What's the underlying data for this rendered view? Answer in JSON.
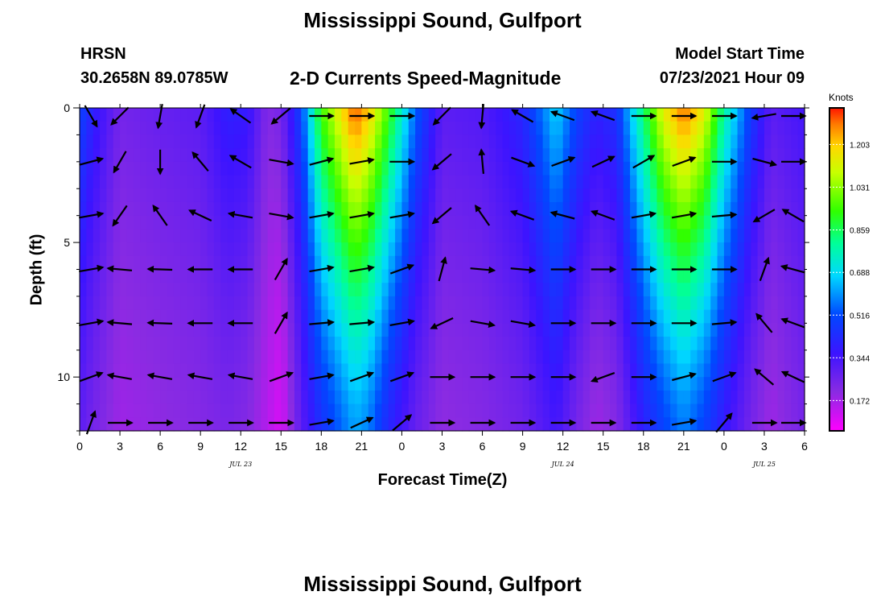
{
  "header": {
    "title": "Mississippi Sound, Gulfport",
    "station": "HRSN",
    "coords": "30.2658N  89.0785W",
    "subtitle": "2-D Currents Speed-Magnitude",
    "model_label": "Model Start Time",
    "model_time": "07/23/2021 Hour 09"
  },
  "footer": {
    "title": "Mississippi Sound, Gulfport"
  },
  "chart_data": {
    "type": "heatmap",
    "title": "2-D Currents Speed-Magnitude",
    "xlabel": "Forecast Time(Z)",
    "ylabel": "Depth (ft)",
    "colorbar_unit": "Knots",
    "x_range_hours": [
      0,
      54
    ],
    "y_range_ft": [
      0,
      12
    ],
    "y_inverted": true,
    "x_ticks": [
      "0",
      "3",
      "6",
      "9",
      "12",
      "15",
      "18",
      "21",
      "0",
      "3",
      "6",
      "9",
      "12",
      "15",
      "18",
      "21",
      "0",
      "3",
      "6"
    ],
    "x_tick_hours": [
      0,
      3,
      6,
      9,
      12,
      15,
      18,
      21,
      24,
      27,
      30,
      33,
      36,
      39,
      42,
      45,
      48,
      51,
      54
    ],
    "date_labels": [
      {
        "label": "JUL 23",
        "hour": 12
      },
      {
        "label": "JUL 24",
        "hour": 36
      },
      {
        "label": "JUL 25",
        "hour": 51
      }
    ],
    "y_ticks": [
      0,
      5,
      10
    ],
    "colorbar_ticks": [
      1.203,
      1.031,
      0.859,
      0.688,
      0.516,
      0.344,
      0.172
    ],
    "colorbar_range": [
      0.05,
      1.35
    ],
    "speed_profile": [
      {
        "hour": 0,
        "surface": 0.5,
        "bottom": 0.3
      },
      {
        "hour": 1,
        "surface": 0.4,
        "bottom": 0.25
      },
      {
        "hour": 3,
        "surface": 0.25,
        "bottom": 0.18
      },
      {
        "hour": 6,
        "surface": 0.28,
        "bottom": 0.2
      },
      {
        "hour": 9,
        "surface": 0.3,
        "bottom": 0.22
      },
      {
        "hour": 11,
        "surface": 0.4,
        "bottom": 0.24
      },
      {
        "hour": 12.5,
        "surface": 0.38,
        "bottom": 0.22
      },
      {
        "hour": 14,
        "surface": 0.22,
        "bottom": 0.15
      },
      {
        "hour": 15,
        "surface": 0.25,
        "bottom": 0.1
      },
      {
        "hour": 16.5,
        "surface": 0.5,
        "bottom": 0.3
      },
      {
        "hour": 18,
        "surface": 0.95,
        "bottom": 0.45
      },
      {
        "hour": 19.5,
        "surface": 1.18,
        "bottom": 0.55
      },
      {
        "hour": 20.5,
        "surface": 1.32,
        "bottom": 0.62
      },
      {
        "hour": 21.5,
        "surface": 1.22,
        "bottom": 0.58
      },
      {
        "hour": 23,
        "surface": 0.95,
        "bottom": 0.42
      },
      {
        "hour": 25,
        "surface": 0.55,
        "bottom": 0.28
      },
      {
        "hour": 27,
        "surface": 0.3,
        "bottom": 0.2
      },
      {
        "hour": 30,
        "surface": 0.32,
        "bottom": 0.22
      },
      {
        "hour": 33,
        "surface": 0.42,
        "bottom": 0.26
      },
      {
        "hour": 35.5,
        "surface": 0.68,
        "bottom": 0.35
      },
      {
        "hour": 37,
        "surface": 0.5,
        "bottom": 0.25
      },
      {
        "hour": 38.5,
        "surface": 0.4,
        "bottom": 0.18
      },
      {
        "hour": 40,
        "surface": 0.45,
        "bottom": 0.22
      },
      {
        "hour": 42,
        "surface": 0.85,
        "bottom": 0.4
      },
      {
        "hour": 43.5,
        "surface": 1.15,
        "bottom": 0.5
      },
      {
        "hour": 45,
        "surface": 1.3,
        "bottom": 0.58
      },
      {
        "hour": 46.5,
        "surface": 1.15,
        "bottom": 0.5
      },
      {
        "hour": 48,
        "surface": 0.8,
        "bottom": 0.38
      },
      {
        "hour": 50,
        "surface": 0.48,
        "bottom": 0.25
      },
      {
        "hour": 51.5,
        "surface": 0.3,
        "bottom": 0.18
      },
      {
        "hour": 54,
        "surface": 0.35,
        "bottom": 0.25
      }
    ],
    "vector_rows_ft": [
      0,
      2,
      4,
      6,
      8,
      10,
      12
    ],
    "vector_hours": [
      0,
      3,
      6,
      9,
      12,
      15,
      18,
      21,
      24,
      27,
      30,
      33,
      36,
      39,
      42,
      45,
      48,
      51,
      54
    ],
    "vector_directions_deg": [
      [
        -60,
        -135,
        -100,
        -110,
        145,
        -140,
        0,
        0,
        0,
        -135,
        -95,
        150,
        160,
        160,
        0,
        0,
        0,
        -170,
        0
      ],
      [
        15,
        -120,
        -90,
        130,
        150,
        -10,
        15,
        10,
        0,
        -140,
        95,
        -20,
        20,
        25,
        30,
        20,
        0,
        -15,
        0
      ],
      [
        10,
        -125,
        125,
        155,
        170,
        -10,
        10,
        10,
        10,
        -140,
        125,
        160,
        165,
        160,
        10,
        10,
        5,
        -150,
        150
      ],
      [
        10,
        175,
        178,
        180,
        180,
        60,
        10,
        10,
        20,
        75,
        -5,
        -5,
        0,
        0,
        0,
        0,
        0,
        70,
        165
      ],
      [
        10,
        175,
        178,
        180,
        180,
        60,
        5,
        5,
        10,
        -155,
        -10,
        -10,
        0,
        0,
        0,
        0,
        5,
        130,
        160
      ],
      [
        20,
        170,
        170,
        170,
        170,
        20,
        10,
        20,
        20,
        0,
        0,
        0,
        0,
        -160,
        0,
        15,
        20,
        140,
        155
      ],
      [
        70,
        0,
        0,
        0,
        0,
        0,
        10,
        25,
        40,
        0,
        0,
        0,
        0,
        0,
        0,
        10,
        50,
        0,
        0
      ]
    ]
  }
}
